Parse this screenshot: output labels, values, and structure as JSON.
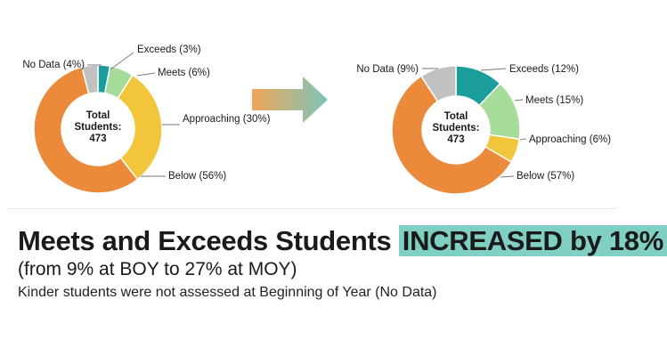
{
  "chart_data": [
    {
      "type": "pie",
      "center_label": [
        "Total",
        "Students:",
        "473"
      ],
      "slices": [
        {
          "label": "Exceeds (3%)",
          "value": 3,
          "color": "#1b9e9b"
        },
        {
          "label": "Meets (6%)",
          "value": 6,
          "color": "#a6dc9a"
        },
        {
          "label": "Approaching (30%)",
          "value": 30,
          "color": "#f2c53b"
        },
        {
          "label": "Below (56%)",
          "value": 56,
          "color": "#ec8a3c"
        },
        {
          "label": "No Data (4%)",
          "value": 4,
          "color": "#c1c1c1"
        }
      ]
    },
    {
      "type": "pie",
      "center_label": [
        "Total",
        "Students:",
        "473"
      ],
      "slices": [
        {
          "label": "Exceeds (12%)",
          "value": 12,
          "color": "#1b9e9b"
        },
        {
          "label": "Meets (15%)",
          "value": 15,
          "color": "#a6dc9a"
        },
        {
          "label": "Approaching (6%)",
          "value": 6,
          "color": "#f2c53b"
        },
        {
          "label": "Below (57%)",
          "value": 57,
          "color": "#ec8a3c"
        },
        {
          "label": "No Data (9%)",
          "value": 9,
          "color": "#c1c1c1"
        }
      ]
    }
  ],
  "arrow": {
    "color_start": "#f0a55a",
    "color_end": "#7cc6b8"
  },
  "headline": {
    "main": "Meets and Exceeds Students ",
    "highlight": "INCREASED by 18%"
  },
  "subtitle": "(from 9% at BOY to 27% at MOY)",
  "note": "Kinder students were not assessed at Beginning of Year (No Data)"
}
